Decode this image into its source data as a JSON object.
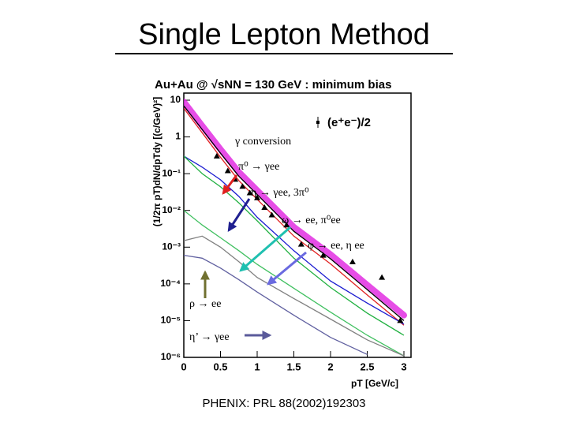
{
  "slide": {
    "title": "Single Lepton Method",
    "footer": "PHENIX: PRL 88(2002)192303"
  },
  "chart_data": {
    "type": "line",
    "title": "Au+Au @ √sNN = 130 GeV : minimum bias",
    "xlabel": "pT [GeV/c]",
    "ylabel": "(1/2π pT)dN/dpTdy [(c/GeV)²]",
    "xlim": [
      0,
      3
    ],
    "xticks": [
      0,
      0.5,
      1,
      1.5,
      2,
      2.5,
      3
    ],
    "ylim": [
      1e-06,
      10
    ],
    "ylog": true,
    "yticks": [
      10,
      1,
      {
        "value": 0.1,
        "label": "10⁻¹"
      },
      {
        "value": 0.01,
        "label": "10⁻²"
      },
      {
        "value": 0.001,
        "label": "10⁻³"
      },
      {
        "value": 0.0001,
        "label": "10⁻⁴"
      },
      {
        "value": 1e-05,
        "label": "10⁻⁵"
      },
      {
        "value": 1e-06,
        "label": "10⁻⁶"
      }
    ],
    "x": [
      0,
      0.25,
      0.5,
      0.75,
      1,
      1.5,
      2,
      2.5,
      3
    ],
    "series": [
      {
        "color": "#e020e0",
        "values": [
          9,
          2,
          0.46,
          0.11,
          0.035,
          0.0035,
          0.00063,
          9.3e-05,
          1.4e-05
        ]
      },
      {
        "name": "γ conversion",
        "color": "#000000",
        "values": [
          7,
          1.6,
          0.36,
          0.085,
          0.027,
          0.0027,
          0.00048,
          7e-05,
          1e-05
        ]
      },
      {
        "name": "π⁰ → γee",
        "color": "#e02020",
        "values": [
          6,
          1.3,
          0.28,
          0.065,
          0.02,
          0.002,
          0.00035,
          5e-05,
          7.5e-06
        ]
      },
      {
        "name": "η → γee, 3π⁰",
        "color": "#1a1ad0",
        "values": [
          0.3,
          0.15,
          0.068,
          0.024,
          0.0065,
          0.0008,
          0.00012,
          3e-05,
          8e-06
        ]
      },
      {
        "name": "ω → ee, π⁰ee",
        "color": "#20b040",
        "values": [
          0.3,
          0.1,
          0.044,
          0.016,
          0.0052,
          0.0005,
          8e-05,
          1.6e-05,
          4e-06
        ]
      },
      {
        "name": "φ → ee, η ee",
        "color": "#40c060",
        "values": [
          0.01,
          0.004,
          0.0018,
          0.0008,
          0.00034,
          7.6e-05,
          1.7e-05,
          4e-06,
          1.1e-06
        ]
      },
      {
        "name": "ρ → ee",
        "color": "#808080",
        "values": [
          0.0015,
          0.002,
          0.001,
          0.0004,
          0.00015,
          4e-05,
          1.1e-05,
          3e-06,
          1.1e-06
        ]
      },
      {
        "name": "η’ → γee",
        "color": "#6060a0",
        "values": [
          0.0006,
          0.0005,
          0.00027,
          0.00013,
          6e-05,
          1.4e-05,
          3.5e-06,
          1.2e-06,
          null
        ]
      },
      {
        "name": "(e⁺e⁻)/2",
        "color": "#000000",
        "marker": "triangle",
        "x": [
          0.45,
          0.6,
          0.7,
          0.8,
          0.9,
          1.0,
          1.1,
          1.2,
          1.4,
          1.6,
          1.9,
          2.3,
          2.7,
          2.95
        ],
        "values": [
          0.3,
          0.12,
          0.07,
          0.045,
          0.03,
          0.022,
          0.012,
          0.0075,
          0.004,
          0.0012,
          0.0006,
          0.0004,
          0.00015,
          1e-05
        ]
      }
    ]
  }
}
